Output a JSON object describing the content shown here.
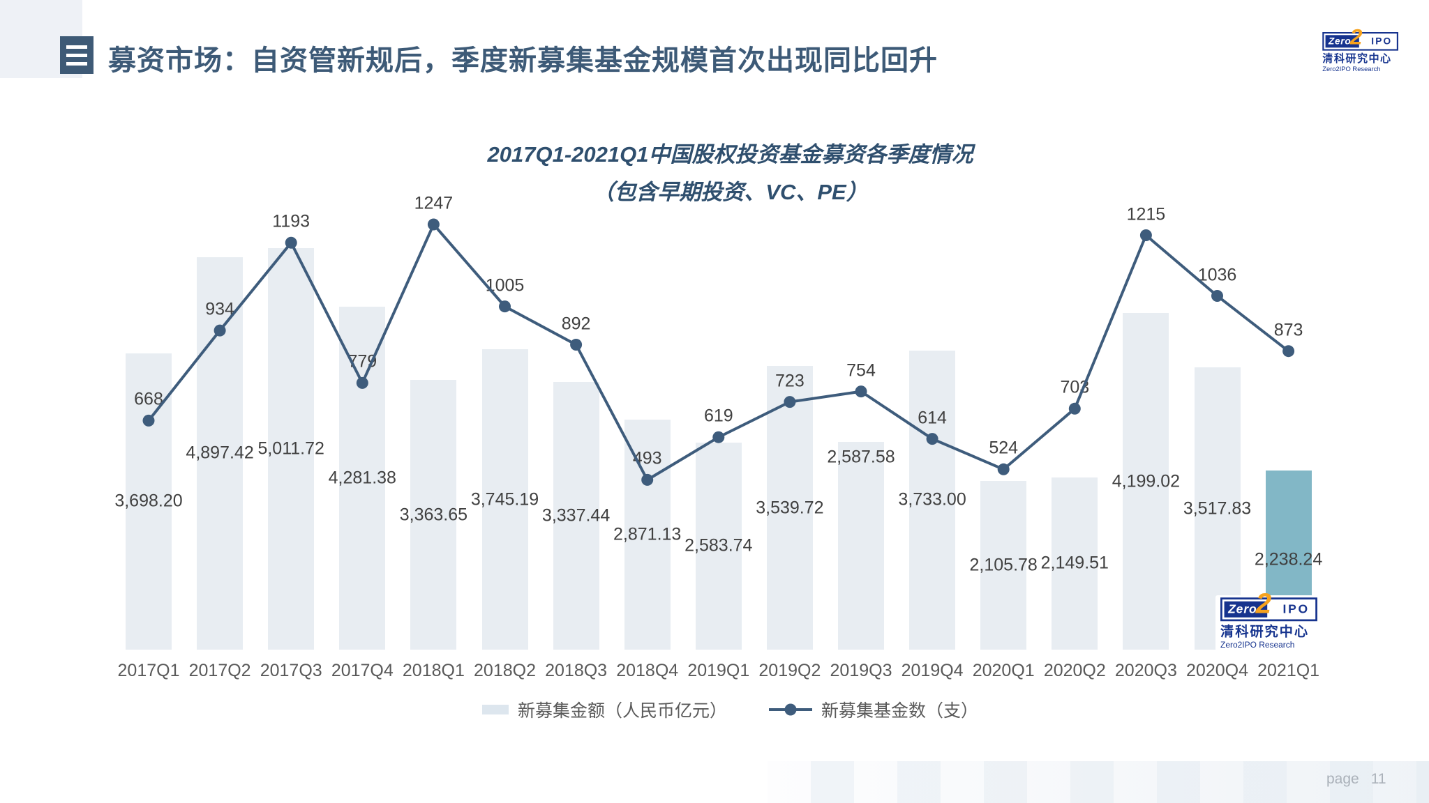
{
  "slide": {
    "header": {
      "title": "募资市场：自资管新规后，季度新募集基金规模首次出现同比回升"
    },
    "footer": {
      "page_label": "page",
      "page_number": "11"
    }
  },
  "logo": {
    "zero": "Zero",
    "two": "2",
    "ipo": "IPO",
    "name_cn": "清科研究中心",
    "name_en": "Zero2IPO Research"
  },
  "chart_data": {
    "type": "bar+line",
    "title": "2017Q1-2021Q1中国股权投资基金募资各季度情况",
    "subtitle": "（包含早期投资、VC、PE）",
    "categories": [
      "2017Q1",
      "2017Q2",
      "2017Q3",
      "2017Q4",
      "2018Q1",
      "2018Q2",
      "2018Q3",
      "2018Q4",
      "2019Q1",
      "2019Q2",
      "2019Q3",
      "2019Q4",
      "2020Q1",
      "2020Q2",
      "2020Q3",
      "2020Q4",
      "2021Q1"
    ],
    "series": [
      {
        "name": "新募集金额（人民币亿元）",
        "type": "bar",
        "values": [
          3698.2,
          4897.42,
          5011.72,
          4281.38,
          3363.65,
          3745.19,
          3337.44,
          2871.13,
          2583.74,
          3539.72,
          2587.58,
          3733.0,
          2105.78,
          2149.51,
          4199.02,
          3517.83,
          2238.24
        ]
      },
      {
        "name": "新募集基金数（支）",
        "type": "line",
        "values": [
          668,
          934,
          1193,
          779,
          1247,
          1005,
          892,
          493,
          619,
          723,
          754,
          614,
          524,
          703,
          1215,
          1036,
          873
        ]
      }
    ],
    "highlight_category": "2021Q1",
    "bar_label_format": "thousands_2dp",
    "line_label_format": "integer",
    "bar_label_placement": "center",
    "bar_label_exceptions": {
      "2019Q3": "inside_top"
    },
    "legend_position": "bottom",
    "axes": {
      "x_labels_visible": true,
      "y_axis_visible": false,
      "gridlines": false
    },
    "colors": {
      "bar": "#e8edf2",
      "bar_highlight": "#82b7c6",
      "line": "#3e5c7c",
      "bar_label": "#404040",
      "line_label": "#404040",
      "axis_label": "#595959",
      "title": "#2f4f6e"
    }
  }
}
